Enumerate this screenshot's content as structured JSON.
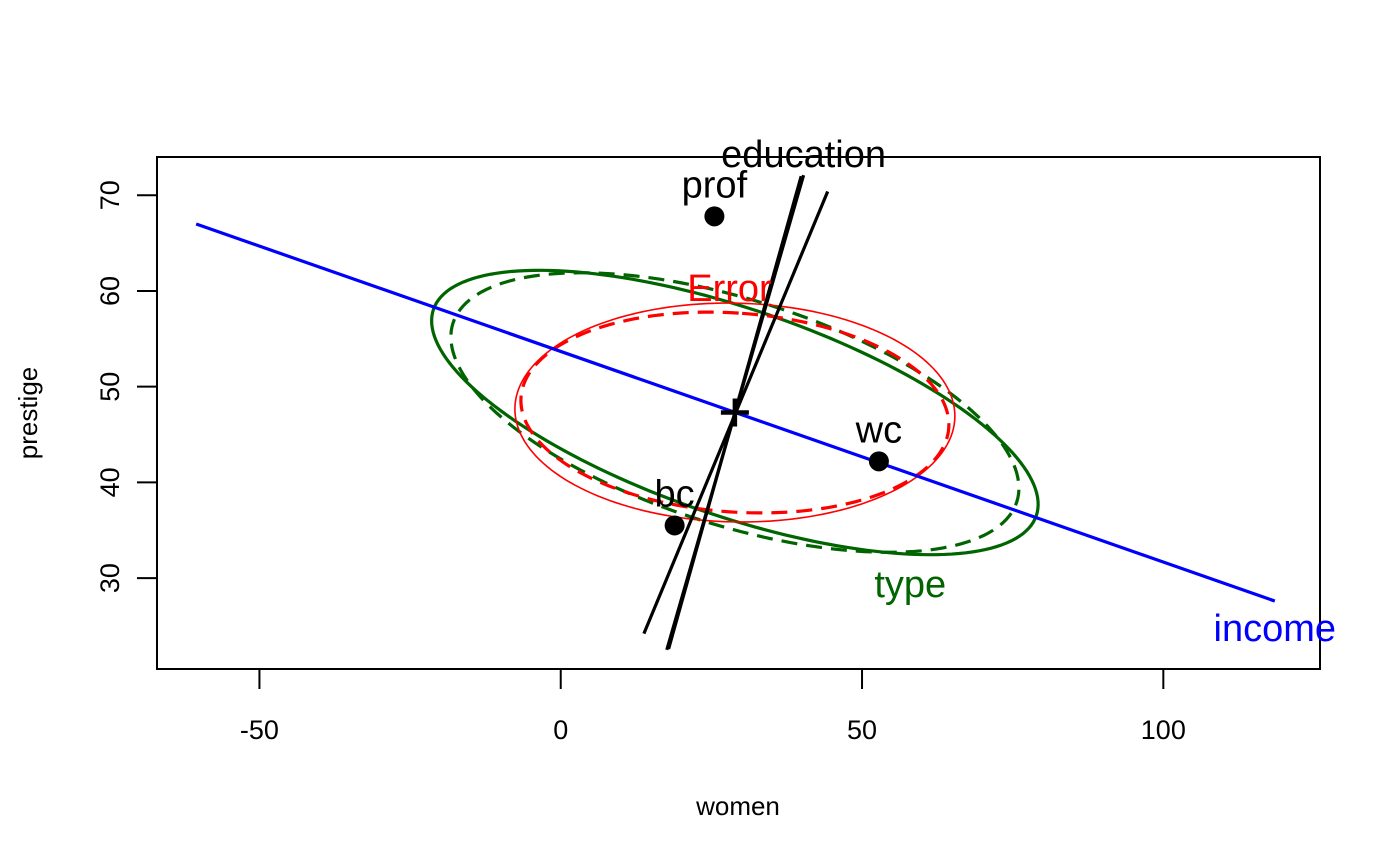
{
  "chart_data": {
    "type": "scatter",
    "title": "",
    "xlabel": "women",
    "ylabel": "prestige",
    "xlim": [
      -67,
      126
    ],
    "ylim": [
      20.5,
      74
    ],
    "xticks": [
      -50,
      0,
      50,
      100
    ],
    "yticks": [
      30,
      40,
      50,
      60,
      70
    ],
    "grid": false,
    "centroid": {
      "x": 28.9,
      "y": 47.3
    },
    "points": [
      {
        "label": "prof",
        "x": 25.5,
        "y": 67.8
      },
      {
        "label": "wc",
        "x": 52.8,
        "y": 42.2
      },
      {
        "label": "bc",
        "x": 18.9,
        "y": 35.5
      }
    ],
    "terms": [
      {
        "name": "income",
        "color": "#0000ff",
        "ellipse_type": "degenerate",
        "segments": [
          {
            "from": [
              -60.5,
              67.0
            ],
            "to": [
              118.5,
              27.6
            ]
          }
        ]
      },
      {
        "name": "education",
        "color": "#000000",
        "ellipse_type": "degenerate",
        "segments": [
          {
            "from": [
              13.8,
              24.2
            ],
            "to": [
              44.3,
              70.4
            ]
          },
          {
            "from": [
              17.6,
              22.5
            ],
            "to": [
              40.3,
              72.1
            ]
          },
          {
            "from": [
              17.9,
              22.6
            ],
            "to": [
              39.9,
              72.0
            ]
          }
        ]
      },
      {
        "name": "type",
        "color": "#006400",
        "ellipse_type": "ellipse",
        "ellipses": [
          {
            "style": "solid",
            "center": [
              28.9,
              47.3
            ],
            "points": [
              [
                -21.2,
                55.6
              ],
              [
                2.3,
                62.0
              ],
              [
                78.9,
                38.9
              ],
              [
                57.7,
                32.5
              ]
            ]
          },
          {
            "style": "dashed",
            "center": [
              28.9,
              47.3
            ],
            "points": [
              [
                -18.2,
                55.6
              ],
              [
                2.6,
                61.9
              ],
              [
                76.0,
                38.9
              ],
              [
                53.5,
                32.7
              ]
            ]
          }
        ]
      },
      {
        "name": "Error",
        "color": "#ff0000",
        "ellipse_type": "ellipse",
        "ellipses": [
          {
            "style": "solid",
            "center": [
              28.9,
              47.3
            ],
            "points": [
              [
                -7.6,
                48.1
              ],
              [
                14.0,
                58.1
              ],
              [
                65.2,
                48.1
              ],
              [
                43.4,
                36.9
              ]
            ]
          },
          {
            "style": "dashed",
            "center": [
              28.9,
              47.3
            ],
            "points": [
              [
                -6.1,
                46.6
              ],
              [
                16.6,
                57.5
              ],
              [
                63.6,
                48.1
              ],
              [
                40.0,
                37.0
              ]
            ]
          }
        ]
      }
    ]
  }
}
